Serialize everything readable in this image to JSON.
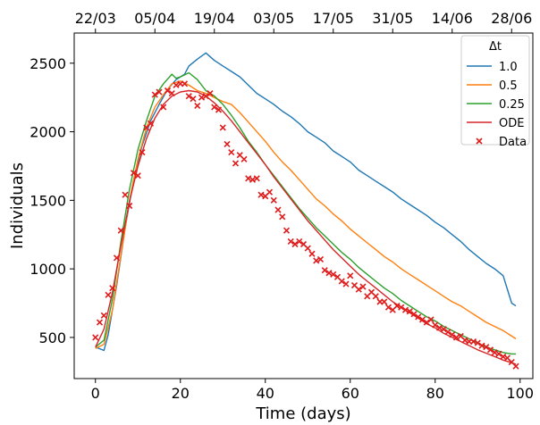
{
  "chart_data": {
    "type": "line",
    "xlabel": "Time (days)",
    "ylabel": "Individuals",
    "xlim": [
      -5,
      103
    ],
    "ylim": [
      200,
      2720
    ],
    "x_ticks": [
      0,
      20,
      40,
      60,
      80,
      100
    ],
    "y_ticks": [
      500,
      1000,
      1500,
      2000,
      2500
    ],
    "top_axis": {
      "tick_days": [
        0,
        14,
        28,
        42,
        56,
        70,
        84,
        98
      ],
      "tick_labels": [
        "22/03",
        "05/04",
        "19/04",
        "03/05",
        "17/05",
        "31/05",
        "14/06",
        "28/06"
      ]
    },
    "legend": {
      "title": "Δt",
      "placement": "top-right"
    },
    "grid": false,
    "series": [
      {
        "name": "1.0",
        "kind": "line",
        "color": "#1f77b4",
        "x": [
          0,
          2,
          3,
          5,
          7,
          9,
          11,
          13,
          15,
          17,
          19,
          21,
          22,
          24,
          26,
          28,
          30,
          32,
          34,
          36,
          38,
          40,
          42,
          44,
          46,
          48,
          50,
          52,
          54,
          56,
          58,
          60,
          62,
          64,
          66,
          68,
          70,
          72,
          74,
          76,
          78,
          80,
          82,
          84,
          86,
          88,
          90,
          92,
          94,
          96,
          98,
          99
        ],
        "y": [
          430,
          405,
          520,
          880,
          1300,
          1650,
          1900,
          2080,
          2200,
          2310,
          2380,
          2420,
          2480,
          2530,
          2575,
          2520,
          2480,
          2440,
          2400,
          2340,
          2280,
          2240,
          2200,
          2150,
          2110,
          2060,
          2000,
          1960,
          1920,
          1860,
          1820,
          1780,
          1720,
          1680,
          1640,
          1600,
          1560,
          1510,
          1470,
          1430,
          1390,
          1340,
          1300,
          1250,
          1200,
          1140,
          1090,
          1040,
          1000,
          950,
          750,
          730
        ]
      },
      {
        "name": "0.5",
        "kind": "line",
        "color": "#ff7f0e",
        "x": [
          0,
          2,
          4,
          6,
          8,
          10,
          12,
          14,
          16,
          18,
          20,
          22,
          24,
          26,
          28,
          30,
          32,
          34,
          36,
          38,
          40,
          42,
          44,
          46,
          48,
          50,
          52,
          54,
          56,
          58,
          60,
          62,
          64,
          66,
          68,
          70,
          72,
          74,
          76,
          78,
          80,
          82,
          84,
          86,
          88,
          90,
          92,
          94,
          96,
          98,
          99
        ],
        "y": [
          420,
          450,
          700,
          1100,
          1500,
          1800,
          2030,
          2180,
          2270,
          2350,
          2370,
          2340,
          2300,
          2280,
          2250,
          2220,
          2200,
          2140,
          2070,
          2000,
          1930,
          1850,
          1780,
          1720,
          1650,
          1580,
          1510,
          1460,
          1400,
          1350,
          1290,
          1240,
          1190,
          1140,
          1090,
          1050,
          1000,
          960,
          920,
          880,
          840,
          800,
          760,
          730,
          690,
          650,
          610,
          580,
          550,
          510,
          490
        ]
      },
      {
        "name": "0.25",
        "kind": "line",
        "color": "#2ca02c",
        "x": [
          0,
          2,
          4,
          6,
          8,
          10,
          12,
          14,
          16,
          18,
          19,
          20,
          22,
          24,
          26,
          28,
          30,
          32,
          34,
          36,
          38,
          40,
          42,
          44,
          46,
          48,
          50,
          52,
          54,
          56,
          58,
          60,
          62,
          64,
          66,
          68,
          70,
          72,
          74,
          76,
          78,
          80,
          82,
          84,
          86,
          88,
          90,
          92,
          94,
          96,
          98,
          99
        ],
        "y": [
          430,
          480,
          780,
          1200,
          1580,
          1870,
          2080,
          2260,
          2350,
          2420,
          2390,
          2400,
          2430,
          2380,
          2300,
          2260,
          2200,
          2120,
          2030,
          1930,
          1850,
          1760,
          1680,
          1600,
          1520,
          1440,
          1370,
          1300,
          1240,
          1180,
          1120,
          1070,
          1010,
          960,
          910,
          860,
          820,
          770,
          730,
          690,
          650,
          620,
          580,
          550,
          520,
          490,
          460,
          430,
          410,
          390,
          380,
          380
        ]
      },
      {
        "name": "ODE",
        "kind": "line",
        "color": "#d62728",
        "x": [
          0,
          2,
          4,
          6,
          8,
          10,
          12,
          14,
          16,
          18,
          20,
          22,
          24,
          26,
          28,
          30,
          32,
          34,
          36,
          38,
          40,
          42,
          44,
          46,
          48,
          50,
          52,
          54,
          56,
          58,
          60,
          62,
          64,
          66,
          68,
          70,
          72,
          74,
          76,
          78,
          80,
          82,
          84,
          86,
          88,
          90,
          92,
          94,
          96,
          98,
          99
        ],
        "y": [
          430,
          560,
          830,
          1170,
          1490,
          1750,
          1950,
          2100,
          2200,
          2260,
          2290,
          2300,
          2290,
          2260,
          2210,
          2150,
          2080,
          2000,
          1920,
          1840,
          1760,
          1670,
          1590,
          1510,
          1430,
          1350,
          1280,
          1210,
          1140,
          1080,
          1020,
          960,
          910,
          860,
          810,
          760,
          720,
          680,
          640,
          600,
          570,
          530,
          500,
          470,
          440,
          410,
          385,
          360,
          335,
          315,
          305
        ]
      },
      {
        "name": "Data",
        "kind": "scatter",
        "color": "#e01b1b",
        "x": [
          0,
          1,
          2,
          3,
          4,
          5,
          6,
          7,
          8,
          9,
          10,
          11,
          12,
          13,
          14,
          15,
          16,
          17,
          18,
          19,
          20,
          21,
          22,
          23,
          24,
          25,
          26,
          27,
          28,
          29,
          30,
          31,
          32,
          33,
          34,
          35,
          36,
          37,
          38,
          39,
          40,
          41,
          42,
          43,
          44,
          45,
          46,
          47,
          48,
          49,
          50,
          51,
          52,
          53,
          54,
          55,
          56,
          57,
          58,
          59,
          60,
          61,
          62,
          63,
          64,
          65,
          66,
          67,
          68,
          69,
          70,
          71,
          72,
          73,
          74,
          75,
          76,
          77,
          78,
          79,
          80,
          81,
          82,
          83,
          84,
          85,
          86,
          87,
          88,
          89,
          90,
          91,
          92,
          93,
          94,
          95,
          96,
          97,
          98,
          99
        ],
        "y": [
          500,
          610,
          660,
          810,
          860,
          1080,
          1280,
          1540,
          1460,
          1700,
          1680,
          1850,
          2030,
          2060,
          2270,
          2290,
          2180,
          2300,
          2280,
          2340,
          2350,
          2350,
          2260,
          2240,
          2190,
          2250,
          2260,
          2280,
          2180,
          2160,
          2030,
          1910,
          1850,
          1770,
          1830,
          1800,
          1660,
          1650,
          1660,
          1540,
          1530,
          1560,
          1500,
          1430,
          1380,
          1280,
          1200,
          1180,
          1200,
          1180,
          1150,
          1110,
          1060,
          1070,
          990,
          970,
          960,
          940,
          910,
          890,
          950,
          880,
          850,
          870,
          800,
          830,
          800,
          760,
          760,
          720,
          700,
          730,
          720,
          700,
          690,
          670,
          650,
          630,
          610,
          630,
          590,
          570,
          560,
          540,
          520,
          500,
          510,
          480,
          470,
          470,
          460,
          440,
          430,
          410,
          390,
          380,
          360,
          350,
          320,
          290
        ]
      }
    ]
  }
}
